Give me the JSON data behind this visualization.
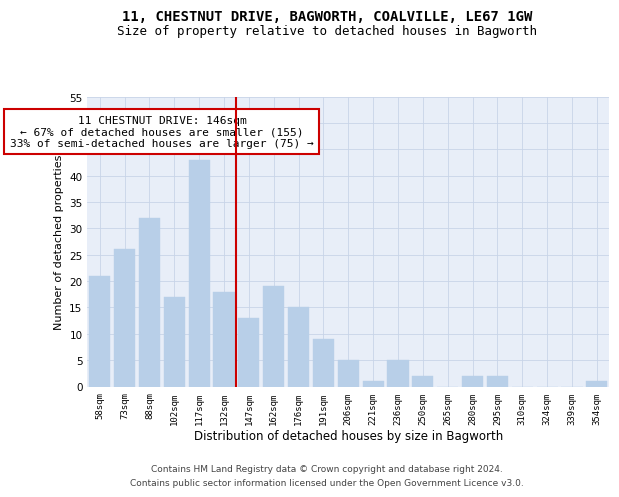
{
  "title": "11, CHESTNUT DRIVE, BAGWORTH, COALVILLE, LE67 1GW",
  "subtitle": "Size of property relative to detached houses in Bagworth",
  "xlabel": "Distribution of detached houses by size in Bagworth",
  "ylabel": "Number of detached properties",
  "bar_labels": [
    "58sqm",
    "73sqm",
    "88sqm",
    "102sqm",
    "117sqm",
    "132sqm",
    "147sqm",
    "162sqm",
    "176sqm",
    "191sqm",
    "206sqm",
    "221sqm",
    "236sqm",
    "250sqm",
    "265sqm",
    "280sqm",
    "295sqm",
    "310sqm",
    "324sqm",
    "339sqm",
    "354sqm"
  ],
  "bar_values": [
    21,
    26,
    32,
    17,
    43,
    18,
    13,
    19,
    15,
    9,
    5,
    1,
    5,
    2,
    0,
    2,
    2,
    0,
    0,
    0,
    1
  ],
  "bar_color": "#b8cfe8",
  "bar_edgecolor": "#b8cfe8",
  "vline_color": "#cc0000",
  "annotation_text": "11 CHESTNUT DRIVE: 146sqm\n← 67% of detached houses are smaller (155)\n33% of semi-detached houses are larger (75) →",
  "annotation_box_edgecolor": "#cc0000",
  "annotation_fontsize": 8,
  "ylim": [
    0,
    55
  ],
  "yticks": [
    0,
    5,
    10,
    15,
    20,
    25,
    30,
    35,
    40,
    45,
    50,
    55
  ],
  "grid_color": "#c8d4e8",
  "background_color": "#e8eef8",
  "title_fontsize": 10,
  "subtitle_fontsize": 9,
  "xlabel_fontsize": 8.5,
  "ylabel_fontsize": 8,
  "footer_line1": "Contains HM Land Registry data © Crown copyright and database right 2024.",
  "footer_line2": "Contains public sector information licensed under the Open Government Licence v3.0.",
  "footer_fontsize": 6.5
}
